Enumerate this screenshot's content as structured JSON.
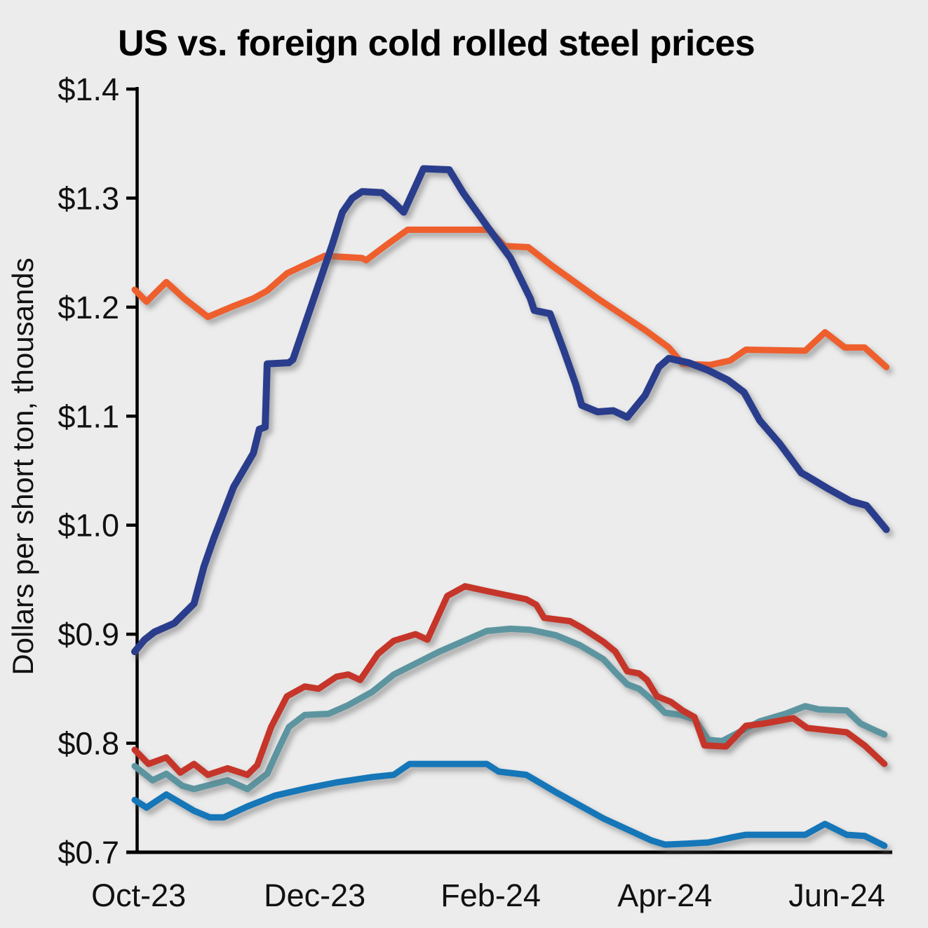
{
  "chart_data": {
    "type": "line",
    "title": "US vs. foreign cold rolled steel prices",
    "ylabel": "Dollars per short ton, thousands",
    "xlabel": "",
    "ylim": [
      0.7,
      1.4
    ],
    "x_unit": "weeks from first observation",
    "xlim_weeks": [
      0,
      38.3
    ],
    "grid": false,
    "legend_position": "none",
    "background_color": "#ececec",
    "axis_color": "#000000",
    "text_color": "#111111",
    "y_axis": {
      "ticks": [
        {
          "label": "$1.4",
          "value": 1.4
        },
        {
          "label": "$1.3",
          "value": 1.3
        },
        {
          "label": "$1.2",
          "value": 1.2
        },
        {
          "label": "$1.1",
          "value": 1.1
        },
        {
          "label": "$1.0",
          "value": 1.0
        },
        {
          "label": "$0.9",
          "value": 0.9
        },
        {
          "label": "$0.8",
          "value": 0.8
        },
        {
          "label": "$0.7",
          "value": 0.7
        }
      ]
    },
    "x_axis": {
      "ticks": [
        {
          "label": "Oct-23",
          "week": 0.2
        },
        {
          "label": "Dec-23",
          "week": 9.1
        },
        {
          "label": "Feb-24",
          "week": 18.0
        },
        {
          "label": "Apr-24",
          "week": 26.8
        },
        {
          "label": "Jun-24",
          "week": 35.5
        }
      ]
    },
    "series": [
      {
        "name": "navy",
        "color": "#2a3d8c",
        "stroke_width": 10,
        "points": [
          [
            0,
            0.884
          ],
          [
            0.5,
            0.895
          ],
          [
            1,
            0.902
          ],
          [
            2,
            0.91
          ],
          [
            3,
            0.928
          ],
          [
            3.5,
            0.962
          ],
          [
            4,
            0.988
          ],
          [
            5,
            1.035
          ],
          [
            6,
            1.066
          ],
          [
            6.3,
            1.088
          ],
          [
            6.6,
            1.09
          ],
          [
            6.7,
            1.148
          ],
          [
            7.8,
            1.149
          ],
          [
            8,
            1.152
          ],
          [
            9,
            1.205
          ],
          [
            10,
            1.258
          ],
          [
            10.5,
            1.287
          ],
          [
            11,
            1.3
          ],
          [
            11.5,
            1.306
          ],
          [
            12.5,
            1.305
          ],
          [
            13.1,
            1.296
          ],
          [
            13.6,
            1.287
          ],
          [
            14.6,
            1.327
          ],
          [
            15.9,
            1.326
          ],
          [
            16.6,
            1.305
          ],
          [
            17.9,
            1.272
          ],
          [
            19,
            1.245
          ],
          [
            20,
            1.208
          ],
          [
            20.2,
            1.197
          ],
          [
            21,
            1.194
          ],
          [
            21.7,
            1.16
          ],
          [
            22.3,
            1.129
          ],
          [
            22.6,
            1.11
          ],
          [
            23.4,
            1.104
          ],
          [
            24.2,
            1.105
          ],
          [
            24.9,
            1.099
          ],
          [
            25.8,
            1.119
          ],
          [
            26.5,
            1.145
          ],
          [
            27,
            1.153
          ],
          [
            28,
            1.149
          ],
          [
            29,
            1.142
          ],
          [
            30,
            1.133
          ],
          [
            30.8,
            1.122
          ],
          [
            31.6,
            1.096
          ],
          [
            32.6,
            1.075
          ],
          [
            33.7,
            1.048
          ],
          [
            34,
            1.045
          ],
          [
            35.1,
            1.033
          ],
          [
            36.2,
            1.022
          ],
          [
            37,
            1.018
          ],
          [
            38,
            0.996
          ]
        ]
      },
      {
        "name": "orange",
        "color": "#ee5f2d",
        "stroke_width": 9,
        "points": [
          [
            0,
            1.216
          ],
          [
            0.6,
            1.205
          ],
          [
            1.6,
            1.223
          ],
          [
            2.5,
            1.208
          ],
          [
            3.7,
            1.191
          ],
          [
            5,
            1.201
          ],
          [
            6,
            1.208
          ],
          [
            6.7,
            1.215
          ],
          [
            7.7,
            1.231
          ],
          [
            8.4,
            1.237
          ],
          [
            9.6,
            1.247
          ],
          [
            11.5,
            1.245
          ],
          [
            11.7,
            1.243
          ],
          [
            12.8,
            1.258
          ],
          [
            13.8,
            1.271
          ],
          [
            17.9,
            1.271
          ],
          [
            18.7,
            1.256
          ],
          [
            19.9,
            1.255
          ],
          [
            21.1,
            1.238
          ],
          [
            23.4,
            1.208
          ],
          [
            25.8,
            1.179
          ],
          [
            27,
            1.163
          ],
          [
            27.7,
            1.148
          ],
          [
            29.1,
            1.147
          ],
          [
            30.1,
            1.151
          ],
          [
            30.9,
            1.161
          ],
          [
            33.9,
            1.16
          ],
          [
            34.9,
            1.177
          ],
          [
            35.9,
            1.163
          ],
          [
            36.9,
            1.163
          ],
          [
            38,
            1.145
          ]
        ]
      },
      {
        "name": "red",
        "color": "#c63529",
        "stroke_width": 9,
        "points": [
          [
            0,
            0.794
          ],
          [
            0.7,
            0.781
          ],
          [
            1.6,
            0.787
          ],
          [
            2.3,
            0.773
          ],
          [
            3,
            0.781
          ],
          [
            3.7,
            0.771
          ],
          [
            4.7,
            0.777
          ],
          [
            5.7,
            0.771
          ],
          [
            6.2,
            0.78
          ],
          [
            6.9,
            0.815
          ],
          [
            7.7,
            0.843
          ],
          [
            8.6,
            0.852
          ],
          [
            9.3,
            0.85
          ],
          [
            10.2,
            0.861
          ],
          [
            10.8,
            0.863
          ],
          [
            11.4,
            0.858
          ],
          [
            12.3,
            0.882
          ],
          [
            13.1,
            0.894
          ],
          [
            14.2,
            0.9
          ],
          [
            14.8,
            0.895
          ],
          [
            15.8,
            0.935
          ],
          [
            16.7,
            0.944
          ],
          [
            17.7,
            0.94
          ],
          [
            19.8,
            0.932
          ],
          [
            20.3,
            0.927
          ],
          [
            20.7,
            0.915
          ],
          [
            22,
            0.912
          ],
          [
            22.6,
            0.906
          ],
          [
            23.7,
            0.893
          ],
          [
            24.3,
            0.884
          ],
          [
            24.9,
            0.866
          ],
          [
            25.5,
            0.864
          ],
          [
            25.9,
            0.858
          ],
          [
            26.4,
            0.843
          ],
          [
            27.1,
            0.838
          ],
          [
            27.7,
            0.83
          ],
          [
            28.3,
            0.824
          ],
          [
            28.8,
            0.798
          ],
          [
            29.9,
            0.797
          ],
          [
            30.9,
            0.816
          ],
          [
            31.8,
            0.818
          ],
          [
            33.3,
            0.823
          ],
          [
            34,
            0.814
          ],
          [
            35,
            0.812
          ],
          [
            36,
            0.81
          ],
          [
            36.9,
            0.798
          ],
          [
            37.9,
            0.781
          ]
        ]
      },
      {
        "name": "teal",
        "color": "#5c95a0",
        "stroke_width": 9,
        "points": [
          [
            0,
            0.779
          ],
          [
            0.9,
            0.766
          ],
          [
            1.6,
            0.772
          ],
          [
            2.4,
            0.761
          ],
          [
            3,
            0.758
          ],
          [
            4.7,
            0.766
          ],
          [
            5.7,
            0.758
          ],
          [
            6.7,
            0.772
          ],
          [
            7.3,
            0.796
          ],
          [
            7.8,
            0.815
          ],
          [
            8.6,
            0.826
          ],
          [
            9.8,
            0.827
          ],
          [
            10.8,
            0.835
          ],
          [
            12,
            0.847
          ],
          [
            13.1,
            0.863
          ],
          [
            15.4,
            0.884
          ],
          [
            17.8,
            0.903
          ],
          [
            19,
            0.905
          ],
          [
            20,
            0.904
          ],
          [
            21.3,
            0.899
          ],
          [
            22.5,
            0.89
          ],
          [
            23.7,
            0.877
          ],
          [
            24.3,
            0.865
          ],
          [
            24.9,
            0.854
          ],
          [
            25.5,
            0.85
          ],
          [
            26.2,
            0.839
          ],
          [
            26.8,
            0.828
          ],
          [
            27.6,
            0.826
          ],
          [
            28.3,
            0.822
          ],
          [
            29,
            0.803
          ],
          [
            29.7,
            0.802
          ],
          [
            31.6,
            0.82
          ],
          [
            32.9,
            0.827
          ],
          [
            33.9,
            0.834
          ],
          [
            34.6,
            0.831
          ],
          [
            36,
            0.83
          ],
          [
            36.7,
            0.818
          ],
          [
            37.4,
            0.812
          ],
          [
            37.9,
            0.808
          ]
        ]
      },
      {
        "name": "blue",
        "color": "#1576b8",
        "stroke_width": 9,
        "points": [
          [
            0,
            0.748
          ],
          [
            0.6,
            0.741
          ],
          [
            1.6,
            0.753
          ],
          [
            3,
            0.738
          ],
          [
            3.8,
            0.732
          ],
          [
            4.5,
            0.732
          ],
          [
            5.7,
            0.742
          ],
          [
            7.1,
            0.752
          ],
          [
            8.8,
            0.759
          ],
          [
            10.2,
            0.764
          ],
          [
            12,
            0.769
          ],
          [
            13.1,
            0.771
          ],
          [
            13.9,
            0.781
          ],
          [
            17.8,
            0.781
          ],
          [
            18.4,
            0.774
          ],
          [
            19.8,
            0.771
          ],
          [
            21.3,
            0.755
          ],
          [
            23.7,
            0.731
          ],
          [
            26.1,
            0.711
          ],
          [
            26.8,
            0.707
          ],
          [
            28,
            0.708
          ],
          [
            29,
            0.709
          ],
          [
            30.3,
            0.714
          ],
          [
            30.9,
            0.716
          ],
          [
            33.9,
            0.716
          ],
          [
            34.9,
            0.726
          ],
          [
            36,
            0.716
          ],
          [
            36.9,
            0.715
          ],
          [
            37.9,
            0.706
          ]
        ]
      }
    ]
  }
}
